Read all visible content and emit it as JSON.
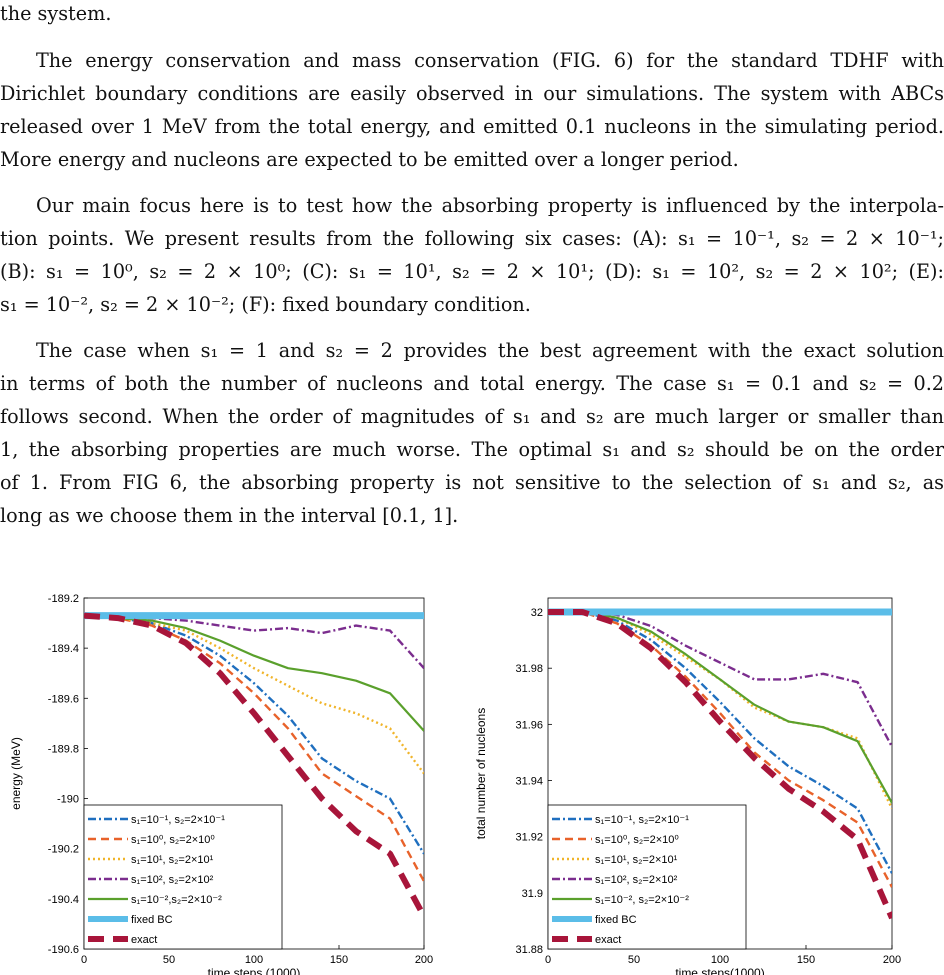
{
  "paragraphs": [
    "the system.",
    "The energy conservation and mass conservation (FIG. 6) for the standard TDHF with",
    "Dirichlet boundary conditions are easily observed in our simulations. The system with ABCs",
    "released over 1 MeV from the total energy, and emitted 0.1 nucleons in the simulating period.",
    "More energy and nucleons are expected to be emitted over a longer period.",
    "Our main focus here is to test how the absorbing property is influenced by the interpola-",
    "tion points. We present results from the following six cases: (A): s₁ = 10⁻¹, s₂ = 2 × 10⁻¹;",
    "(B): s₁ = 10⁰, s₂ = 2 × 10⁰; (C): s₁ = 10¹, s₂ = 2 × 10¹; (D): s₁ = 10², s₂ = 2 × 10²; (E):",
    "s₁ = 10⁻², s₂ = 2 × 10⁻²; (F): fixed boundary condition.",
    "The case when s₁ = 1 and s₂ = 2 provides the best agreement with the exact solution",
    "in terms of both the number of nucleons and total energy. The case s₁ = 0.1 and s₂ = 0.2",
    "follows second. When the order of magnitudes of s₁ and s₂ are much larger or smaller than",
    "1, the absorbing properties are much worse. The optimal s₁ and s₂ should be on the order",
    "of 1. From FIG 6, the absorbing property is not sensitive to the selection of s₁ and s₂, as",
    "long as we choose them in the interval [0.1, 1]."
  ],
  "chart_data": [
    {
      "type": "line",
      "xlabel": "time steps (1000)",
      "ylabel": "energy (MeV)",
      "xlim": [
        0,
        200
      ],
      "ylim": [
        -190.6,
        -189.2
      ],
      "xticks": [
        "0",
        "50",
        "100",
        "150",
        "200"
      ],
      "yticks": [
        "-189.2",
        "-189.4",
        "-189.6",
        "-189.8",
        "-190",
        "-190.2",
        "-190.4",
        "-190.6"
      ],
      "legend_position": "bottom-left",
      "series": [
        {
          "name": "s₁=10⁻¹, s₂=2×10⁻¹",
          "color": "#1f6fbf",
          "style": "dashdot",
          "x": [
            0,
            20,
            40,
            60,
            80,
            100,
            120,
            140,
            160,
            180,
            200
          ],
          "y": [
            -189.27,
            -189.28,
            -189.3,
            -189.35,
            -189.43,
            -189.54,
            -189.67,
            -189.84,
            -189.93,
            -190.0,
            -190.22
          ]
        },
        {
          "name": "s₁=10⁰, s₂=2×10⁰",
          "color": "#e8622a",
          "style": "dash",
          "x": [
            0,
            20,
            40,
            60,
            80,
            100,
            120,
            140,
            160,
            180,
            200
          ],
          "y": [
            -189.27,
            -189.28,
            -189.31,
            -189.37,
            -189.46,
            -189.58,
            -189.72,
            -189.9,
            -189.99,
            -190.08,
            -190.33
          ]
        },
        {
          "name": "s₁=10¹, s₂=2×10¹",
          "color": "#f0b429",
          "style": "dot",
          "x": [
            0,
            20,
            40,
            60,
            80,
            100,
            120,
            140,
            160,
            180,
            200
          ],
          "y": [
            -189.27,
            -189.28,
            -189.3,
            -189.33,
            -189.4,
            -189.48,
            -189.55,
            -189.62,
            -189.66,
            -189.72,
            -189.9
          ]
        },
        {
          "name": "s₁=10², s₂=2×10²",
          "color": "#7b2d8e",
          "style": "dashdot",
          "x": [
            0,
            20,
            40,
            60,
            80,
            100,
            120,
            140,
            160,
            180,
            200
          ],
          "y": [
            -189.27,
            -189.28,
            -189.28,
            -189.29,
            -189.31,
            -189.33,
            -189.32,
            -189.34,
            -189.31,
            -189.33,
            -189.48
          ]
        },
        {
          "name": "s₁=10⁻²,s₂=2×10⁻²",
          "color": "#5aa02c",
          "style": "solid",
          "x": [
            0,
            20,
            40,
            60,
            80,
            100,
            120,
            140,
            160,
            180,
            200
          ],
          "y": [
            -189.27,
            -189.28,
            -189.29,
            -189.32,
            -189.37,
            -189.43,
            -189.48,
            -189.5,
            -189.53,
            -189.58,
            -189.73
          ]
        },
        {
          "name": "fixed BC",
          "color": "#5bbde8",
          "style": "thick",
          "x": [
            0,
            200
          ],
          "y": [
            -189.27,
            -189.27
          ]
        },
        {
          "name": "exact",
          "color": "#a8153a",
          "style": "thickdash",
          "x": [
            0,
            20,
            40,
            60,
            80,
            100,
            120,
            140,
            160,
            180,
            200
          ],
          "y": [
            -189.27,
            -189.28,
            -189.31,
            -189.38,
            -189.5,
            -189.66,
            -189.83,
            -190.0,
            -190.13,
            -190.22,
            -190.47
          ]
        }
      ]
    },
    {
      "type": "line",
      "xlabel": "time steps(1000)",
      "ylabel": "total number of nucleons",
      "xlim": [
        0,
        200
      ],
      "ylim": [
        31.88,
        32.005
      ],
      "xticks": [
        "0",
        "50",
        "100",
        "150",
        "200"
      ],
      "yticks": [
        "31.88",
        "31.9",
        "31.92",
        "31.94",
        "31.96",
        "31.98",
        "32"
      ],
      "legend_position": "bottom-left",
      "series": [
        {
          "name": "s₁=10⁻¹, s₂=2×10⁻¹",
          "color": "#1f6fbf",
          "style": "dashdot",
          "x": [
            0,
            20,
            40,
            60,
            80,
            100,
            120,
            140,
            160,
            180,
            200
          ],
          "y": [
            32.0,
            32.0,
            31.997,
            31.99,
            31.98,
            31.968,
            31.955,
            31.945,
            31.938,
            31.93,
            31.907
          ]
        },
        {
          "name": "s₁=10⁰, s₂=2×10⁰",
          "color": "#e8622a",
          "style": "dash",
          "x": [
            0,
            20,
            40,
            60,
            80,
            100,
            120,
            140,
            160,
            180,
            200
          ],
          "y": [
            32.0,
            32.0,
            31.996,
            31.988,
            31.977,
            31.964,
            31.95,
            31.94,
            31.933,
            31.925,
            31.902
          ]
        },
        {
          "name": "s₁=10¹, s₂=2×10¹",
          "color": "#f0b429",
          "style": "dot",
          "x": [
            0,
            20,
            40,
            60,
            80,
            100,
            120,
            140,
            160,
            180,
            200
          ],
          "y": [
            32.0,
            32.0,
            31.998,
            31.992,
            31.984,
            31.976,
            31.966,
            31.961,
            31.959,
            31.955,
            31.93
          ]
        },
        {
          "name": "s₁=10², s₂=2×10²",
          "color": "#7b2d8e",
          "style": "dashdot",
          "x": [
            0,
            20,
            40,
            60,
            80,
            100,
            120,
            140,
            160,
            180,
            200
          ],
          "y": [
            32.0,
            32.0,
            31.999,
            31.995,
            31.988,
            31.982,
            31.976,
            31.976,
            31.978,
            31.975,
            31.952
          ]
        },
        {
          "name": "s₁=10⁻², s₂=2×10⁻²",
          "color": "#5aa02c",
          "style": "solid",
          "x": [
            0,
            20,
            40,
            60,
            80,
            100,
            120,
            140,
            160,
            180,
            200
          ],
          "y": [
            32.0,
            32.0,
            31.998,
            31.993,
            31.985,
            31.976,
            31.967,
            31.961,
            31.959,
            31.954,
            31.932
          ]
        },
        {
          "name": "fixed BC",
          "color": "#5bbde8",
          "style": "thick",
          "x": [
            0,
            200
          ],
          "y": [
            32.0,
            32.0
          ]
        },
        {
          "name": "exact",
          "color": "#a8153a",
          "style": "thickdash",
          "x": [
            0,
            20,
            40,
            60,
            80,
            100,
            120,
            140,
            160,
            180,
            200
          ],
          "y": [
            32.0,
            32.0,
            31.996,
            31.987,
            31.975,
            31.961,
            31.948,
            31.937,
            31.929,
            31.919,
            31.891
          ]
        }
      ]
    }
  ]
}
